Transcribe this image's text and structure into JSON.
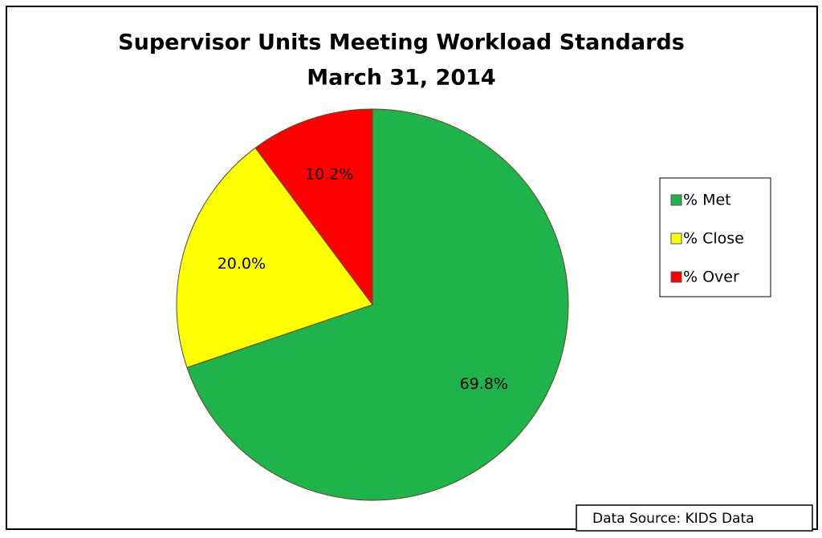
{
  "chart_data": {
    "type": "pie",
    "title": "Supervisor Units Meeting Workload Standards",
    "subtitle": "March 31, 2014",
    "categories": [
      "% Met",
      "% Close",
      "% Over"
    ],
    "values": [
      69.8,
      20.0,
      10.2
    ],
    "value_labels": [
      "69.8%",
      "20.0%",
      "10.2%"
    ],
    "colors": [
      "#1fb34b",
      "#ffff00",
      "#ff0000"
    ],
    "legend": "right",
    "annotation": "Data Source: KIDS Data"
  }
}
